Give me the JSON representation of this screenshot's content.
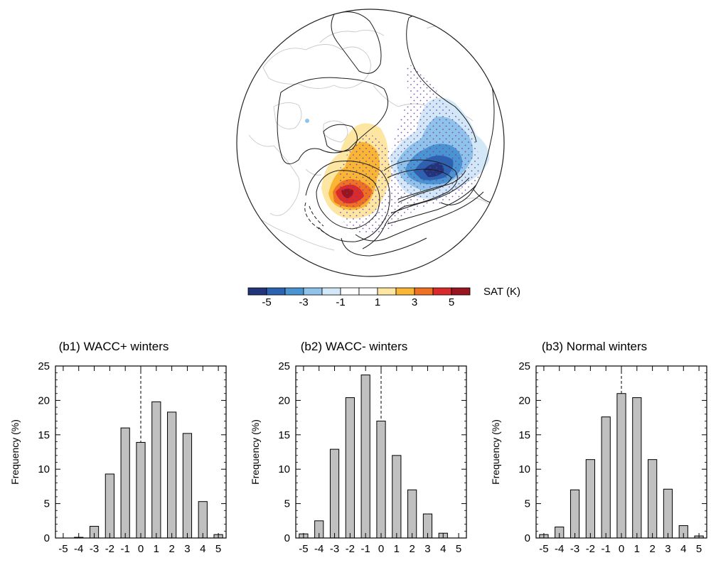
{
  "map": {
    "colorbar_label": "SAT (K)",
    "colorbar_ticks": [
      "-5",
      "-3",
      "-1",
      "1",
      "3",
      "5"
    ],
    "colorbar_colors": [
      "#23357a",
      "#2c63b0",
      "#4b94d2",
      "#8fc3e9",
      "#d2e8f6",
      "#ffffff",
      "#ffffff",
      "#fde6a1",
      "#f9b534",
      "#ef7124",
      "#d92b2b",
      "#99151f"
    ]
  },
  "chart_data": [
    {
      "type": "bar",
      "title": "(b1) WACC+ winters",
      "ylabel": "Frequency (%)",
      "xlabel": "",
      "categories": [
        "-5",
        "-4",
        "-3",
        "-2",
        "-1",
        "0",
        "1",
        "2",
        "3",
        "4",
        "5"
      ],
      "values": [
        0.0,
        0.1,
        1.7,
        9.3,
        16.0,
        13.9,
        19.8,
        18.3,
        15.2,
        5.3,
        0.5
      ],
      "ylim": [
        0,
        25
      ],
      "yticks": [
        "0",
        "5",
        "10",
        "15",
        "20",
        "25"
      ],
      "reference_line_x": 0
    },
    {
      "type": "bar",
      "title": "(b2) WACC- winters",
      "ylabel": "Frequency (%)",
      "xlabel": "",
      "categories": [
        "-5",
        "-4",
        "-3",
        "-2",
        "-1",
        "0",
        "1",
        "2",
        "3",
        "4",
        "5"
      ],
      "values": [
        0.6,
        2.5,
        12.9,
        20.4,
        23.7,
        17.0,
        12.0,
        7.0,
        3.5,
        0.7,
        0.0
      ],
      "ylim": [
        0,
        25
      ],
      "yticks": [
        "0",
        "5",
        "10",
        "15",
        "20",
        "25"
      ],
      "reference_line_x": 0
    },
    {
      "type": "bar",
      "title": "(b3) Normal winters",
      "ylabel": "Frequency (%)",
      "xlabel": "",
      "categories": [
        "-5",
        "-4",
        "-3",
        "-2",
        "-1",
        "0",
        "1",
        "2",
        "3",
        "4",
        "5"
      ],
      "values": [
        0.5,
        1.6,
        7.0,
        11.4,
        17.6,
        21.0,
        20.4,
        11.4,
        7.1,
        1.8,
        0.3
      ],
      "ylim": [
        0,
        25
      ],
      "yticks": [
        "0",
        "5",
        "10",
        "15",
        "20",
        "25"
      ],
      "reference_line_x": 0
    }
  ]
}
